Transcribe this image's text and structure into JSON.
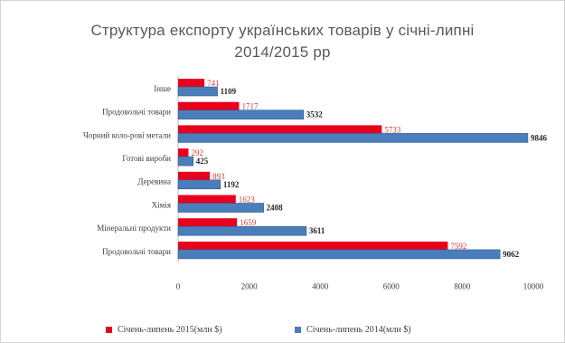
{
  "chart_data": {
    "type": "bar",
    "orientation": "horizontal",
    "title_line1": "Структура експорту українських товарів у січні-липні",
    "title_line2": "2014/2015 рр",
    "categories": [
      "Інше",
      "Продовольчі товари",
      "Чорний коло-рові метали",
      "Готові вироби",
      "Деревина",
      "Хімія",
      "Мінеральні продукти",
      "Продовольчі товари"
    ],
    "series": [
      {
        "name": "Січень-липень 2015(млн $)",
        "color": "#e8001c",
        "values": [
          741,
          1717,
          5733,
          292,
          893,
          1623,
          1659,
          7592
        ]
      },
      {
        "name": "Січень-липень 2014(млн $)",
        "color": "#4a7ebb",
        "values": [
          1109,
          3532,
          9846,
          425,
          1192,
          2408,
          3611,
          9062
        ]
      }
    ],
    "xlim": [
      0,
      10000
    ],
    "xticks": [
      "0",
      "2000",
      "4000",
      "6000",
      "8000",
      "10000"
    ],
    "grid": false,
    "legend_position": "bottom"
  }
}
